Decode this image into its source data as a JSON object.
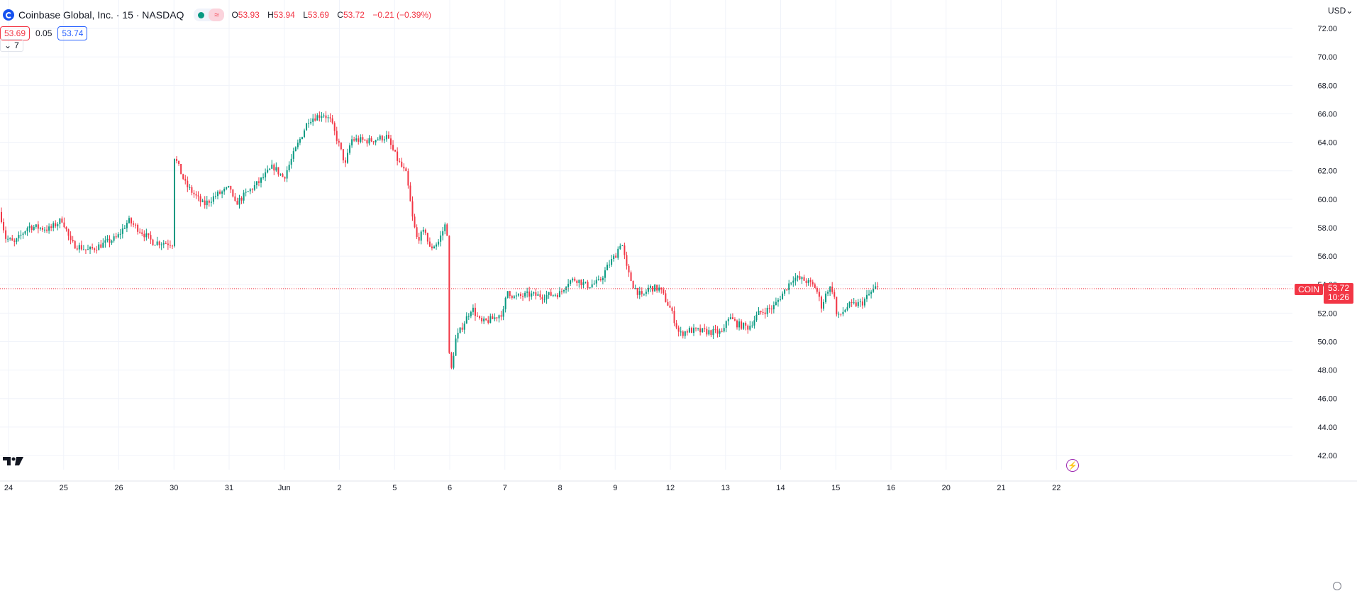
{
  "header": {
    "title": "Coinbase Global, Inc. · 15 · NASDAQ",
    "ohlc": [
      {
        "label": "O",
        "value": "53.93"
      },
      {
        "label": "H",
        "value": "53.94"
      },
      {
        "label": "L",
        "value": "53.69"
      },
      {
        "label": "C",
        "value": "53.72"
      }
    ],
    "change": "−0.21 (−0.39%)",
    "approx_icon": "≈",
    "bid": "53.69",
    "spread": "0.05",
    "ask": "53.74",
    "collapse": "7",
    "currency": "USD"
  },
  "price_tag": {
    "symbol": "COIN",
    "price": "53.72",
    "countdown": "10:26"
  },
  "colors": {
    "up": "#089981",
    "down": "#f23645",
    "grid": "#f0f3fa",
    "accent": "#2962ff"
  },
  "icons": [
    "coinbase-logo-icon",
    "market-status-dot-icon",
    "approx-icon",
    "tradingview-logo-icon",
    "flash-icon",
    "chevron-down-icon",
    "settings-icon"
  ],
  "chart_data": {
    "type": "candlestick",
    "ylim": [
      41.0,
      74.0
    ],
    "y_ticks": [
      42,
      44,
      46,
      48,
      50,
      52,
      54,
      56,
      58,
      60,
      62,
      64,
      66,
      68,
      70,
      72
    ],
    "x_ticks": [
      "24",
      "25",
      "26",
      "30",
      "31",
      "Jun",
      "2",
      "5",
      "6",
      "7",
      "8",
      "9",
      "12",
      "13",
      "14",
      "15",
      "16",
      "20",
      "21",
      "22"
    ],
    "last_price": 53.72,
    "path": [
      [
        0,
        59.1
      ],
      [
        8,
        57.3
      ],
      [
        20,
        56.9
      ],
      [
        40,
        58.1
      ],
      [
        70,
        57.9
      ],
      [
        88,
        58.6
      ],
      [
        100,
        56.9
      ],
      [
        125,
        56.4
      ],
      [
        165,
        57.3
      ],
      [
        181,
        58.5
      ],
      [
        200,
        57.7
      ],
      [
        215,
        57.0
      ],
      [
        243,
        56.9
      ],
      [
        246,
        63.0
      ],
      [
        262,
        61.0
      ],
      [
        287,
        59.6
      ],
      [
        305,
        60.3
      ],
      [
        325,
        60.8
      ],
      [
        330,
        59.6
      ],
      [
        345,
        60.3
      ],
      [
        365,
        61.2
      ],
      [
        385,
        62.3
      ],
      [
        400,
        61.5
      ],
      [
        415,
        63.3
      ],
      [
        435,
        65.6
      ],
      [
        456,
        66.0
      ],
      [
        466,
        65.5
      ],
      [
        478,
        63.8
      ],
      [
        487,
        62.4
      ],
      [
        495,
        64.2
      ],
      [
        520,
        64.1
      ],
      [
        545,
        64.4
      ],
      [
        560,
        62.8
      ],
      [
        573,
        61.7
      ],
      [
        582,
        58.5
      ],
      [
        588,
        57.2
      ],
      [
        600,
        57.8
      ],
      [
        605,
        56.5
      ],
      [
        618,
        57.0
      ],
      [
        630,
        58.5
      ],
      [
        634,
        47.2
      ],
      [
        642,
        50.1
      ],
      [
        655,
        51.4
      ],
      [
        665,
        52.4
      ],
      [
        678,
        51.3
      ],
      [
        695,
        51.6
      ],
      [
        710,
        52.1
      ],
      [
        715,
        53.6
      ],
      [
        725,
        53.1
      ],
      [
        745,
        53.3
      ],
      [
        765,
        53.2
      ],
      [
        790,
        53.4
      ],
      [
        800,
        54.2
      ],
      [
        812,
        54.4
      ],
      [
        828,
        53.9
      ],
      [
        845,
        54.2
      ],
      [
        858,
        55.4
      ],
      [
        868,
        56.1
      ],
      [
        876,
        57.1
      ],
      [
        884,
        55.0
      ],
      [
        893,
        53.9
      ],
      [
        905,
        53.1
      ],
      [
        915,
        53.8
      ],
      [
        930,
        53.7
      ],
      [
        945,
        52.3
      ],
      [
        958,
        50.5
      ],
      [
        970,
        50.8
      ],
      [
        995,
        50.7
      ],
      [
        1020,
        50.6
      ],
      [
        1025,
        51.8
      ],
      [
        1040,
        51.2
      ],
      [
        1055,
        51.0
      ],
      [
        1070,
        52.0
      ],
      [
        1090,
        52.4
      ],
      [
        1105,
        53.5
      ],
      [
        1118,
        54.5
      ],
      [
        1135,
        54.3
      ],
      [
        1150,
        53.8
      ],
      [
        1158,
        52.5
      ],
      [
        1168,
        53.8
      ],
      [
        1175,
        53.6
      ],
      [
        1180,
        51.6
      ],
      [
        1195,
        52.5
      ],
      [
        1215,
        52.7
      ],
      [
        1225,
        53.3
      ],
      [
        1235,
        53.8
      ],
      [
        1240,
        53.72
      ]
    ]
  }
}
